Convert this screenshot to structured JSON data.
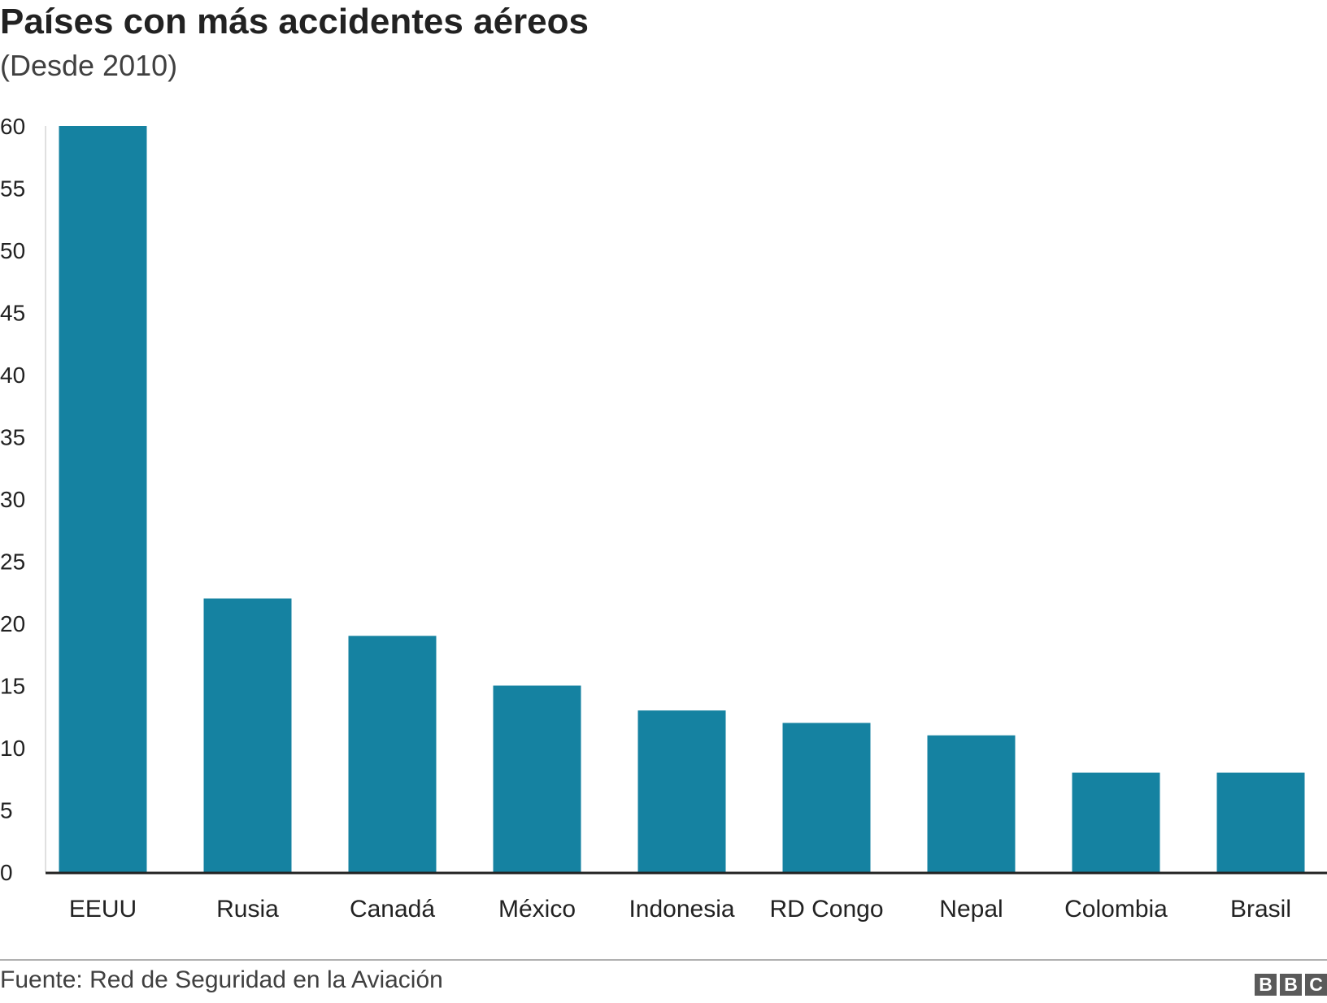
{
  "header": {
    "title": "Países con más accidentes aéreos",
    "subtitle": "(Desde 2010)"
  },
  "footer": {
    "source": "Fuente: Red de Seguridad en la Aviación",
    "logo_letters": [
      "B",
      "B",
      "C"
    ]
  },
  "colors": {
    "bar": "#1582a1",
    "axis": "#222222",
    "gridline": "#e0e0e0"
  },
  "chart_data": {
    "type": "bar",
    "title": "Países con más accidentes aéreos",
    "subtitle": "(Desde 2010)",
    "categories": [
      "EEUU",
      "Rusia",
      "Canadá",
      "México",
      "Indonesia",
      "RD Congo",
      "Nepal",
      "Colombia",
      "Brasil"
    ],
    "values": [
      60,
      22,
      19,
      15,
      13,
      12,
      11,
      8,
      8
    ],
    "xlabel": "",
    "ylabel": "",
    "ylim": [
      0,
      60
    ],
    "yticks": [
      0,
      5,
      10,
      15,
      20,
      25,
      30,
      35,
      40,
      45,
      50,
      55,
      60
    ],
    "grid": false,
    "legend": "none"
  }
}
